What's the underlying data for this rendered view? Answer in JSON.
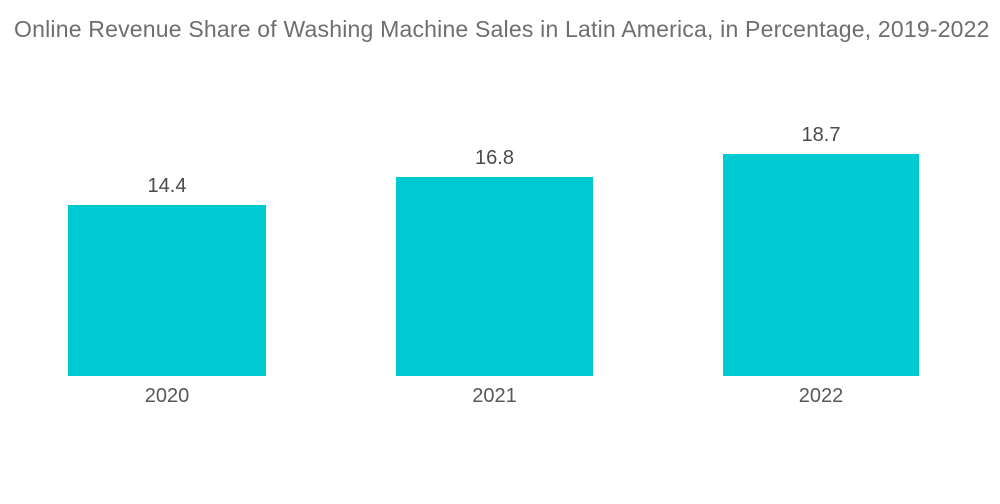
{
  "chart_data": {
    "type": "bar",
    "title": "Online Revenue Share of Washing Machine Sales in Latin America, in Percentage, 2019-2022",
    "categories": [
      "2020",
      "2021",
      "2022"
    ],
    "values": [
      14.4,
      16.8,
      18.7
    ],
    "value_labels": [
      "14.4",
      "16.8",
      "18.7"
    ],
    "xlabel": "",
    "ylabel": "",
    "ylim": [
      0,
      20
    ],
    "grid": false,
    "legend": false,
    "bar_color": "#00cad1",
    "title_color": "#6d6e71",
    "label_color": "#4a4b4d",
    "category_color": "#57585b",
    "background": "#ffffff"
  }
}
